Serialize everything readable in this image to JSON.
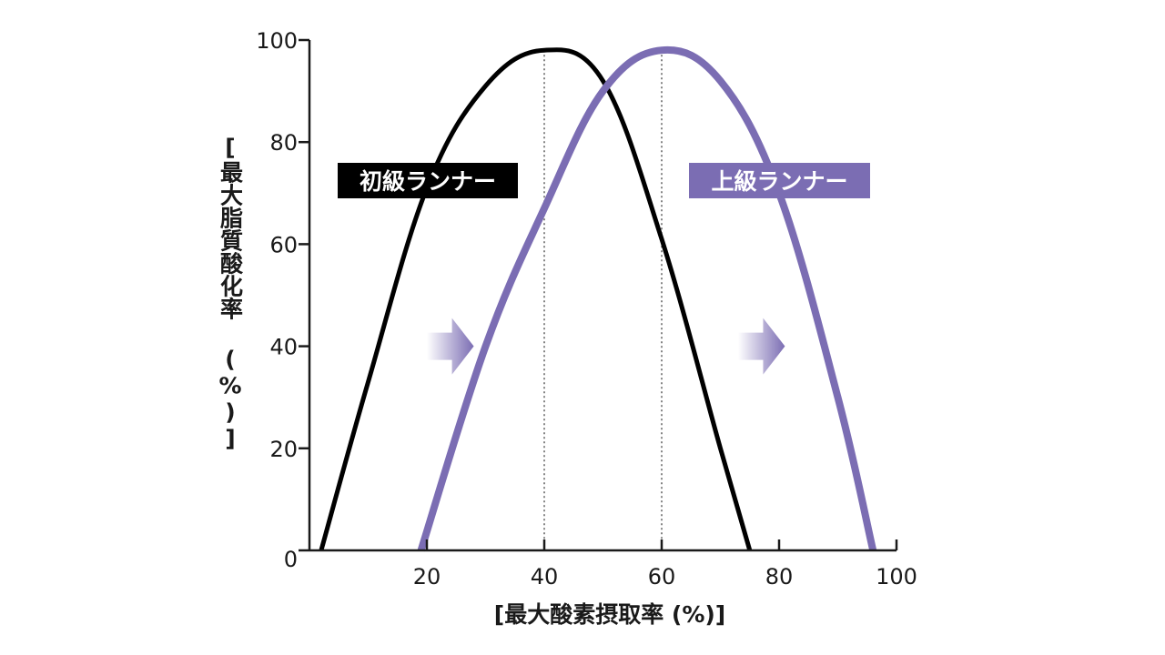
{
  "chart_data": {
    "type": "line",
    "xlabel": "[最大酸素摂取率 (%)]",
    "ylabel": "[最大脂質酸化率 (%)]",
    "xlim": [
      0,
      100
    ],
    "ylim": [
      0,
      100
    ],
    "x_ticks": [
      "20",
      "40",
      "60",
      "80",
      "100"
    ],
    "y_ticks": [
      "0",
      "20",
      "40",
      "60",
      "80",
      "100"
    ],
    "grid": false,
    "colors": {
      "beginner": "#000000",
      "advanced": "#7b6db3"
    },
    "series": [
      {
        "name": "初級ランナー",
        "x": [
          2,
          10,
          20,
          30,
          40,
          50,
          60,
          70,
          75
        ],
        "y": [
          0,
          33,
          71,
          91,
          98,
          92,
          61,
          20,
          0
        ],
        "peak_x": 40,
        "peak_y": 98
      },
      {
        "name": "上級ランナー",
        "x": [
          19,
          30,
          40,
          50,
          60,
          70,
          80,
          90,
          96
        ],
        "y": [
          0,
          40,
          67,
          90,
          98,
          92,
          70,
          30,
          0
        ],
        "peak_x": 60,
        "peak_y": 98
      }
    ],
    "annotations": [
      {
        "type": "arrow",
        "direction": "right",
        "x_start": 20,
        "x_end": 28,
        "y": 40
      },
      {
        "type": "arrow",
        "direction": "right",
        "x_start": 73,
        "x_end": 81,
        "y": 40
      }
    ]
  }
}
